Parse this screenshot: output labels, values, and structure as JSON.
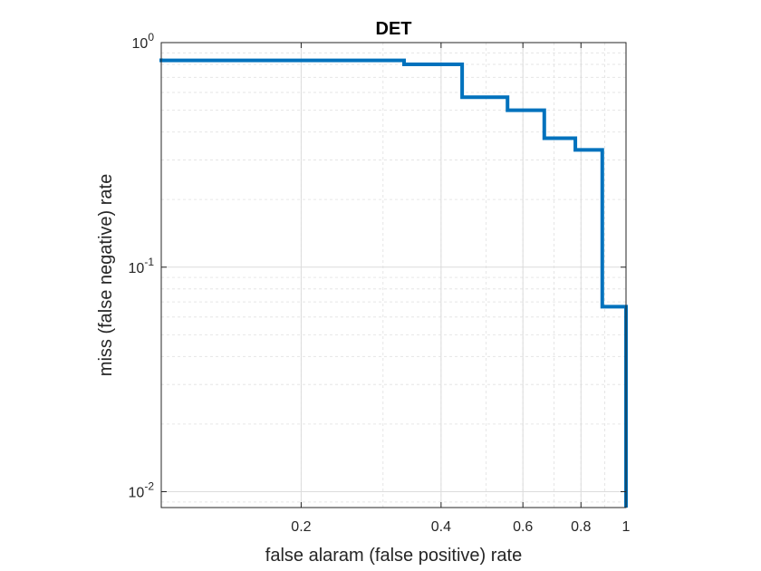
{
  "chart_data": {
    "type": "line",
    "title": "DET",
    "xlabel": "false alaram (false positive) rate",
    "ylabel": "miss (false negative) rate",
    "xscale": "log",
    "yscale": "log",
    "xlim": [
      0.1,
      1
    ],
    "ylim": [
      0.0085,
      1
    ],
    "grid": "on",
    "x_ticks": [
      {
        "value": 0.2,
        "label": "0.2"
      },
      {
        "value": 0.4,
        "label": "0.4"
      },
      {
        "value": 0.6,
        "label": "0.6"
      },
      {
        "value": 0.8,
        "label": "0.8"
      },
      {
        "value": 1,
        "label": "1"
      }
    ],
    "y_ticks": [
      {
        "value": 1,
        "base": "10",
        "exp": "0"
      },
      {
        "value": 0.1,
        "base": "10",
        "exp": "-1"
      },
      {
        "value": 0.01,
        "base": "10",
        "exp": "-2"
      }
    ],
    "series": [
      {
        "color": "#0072BD",
        "x": [
          0.1,
          0.1,
          0.333,
          0.333,
          0.444,
          0.444,
          0.556,
          0.556,
          0.667,
          0.667,
          0.778,
          0.778,
          0.889,
          0.889,
          1.0,
          1.0
        ],
        "y": [
          0.85,
          0.833,
          0.833,
          0.8,
          0.8,
          0.571,
          0.571,
          0.5,
          0.5,
          0.375,
          0.375,
          0.333,
          0.333,
          0.0667,
          0.0667,
          0.0085
        ]
      }
    ]
  }
}
